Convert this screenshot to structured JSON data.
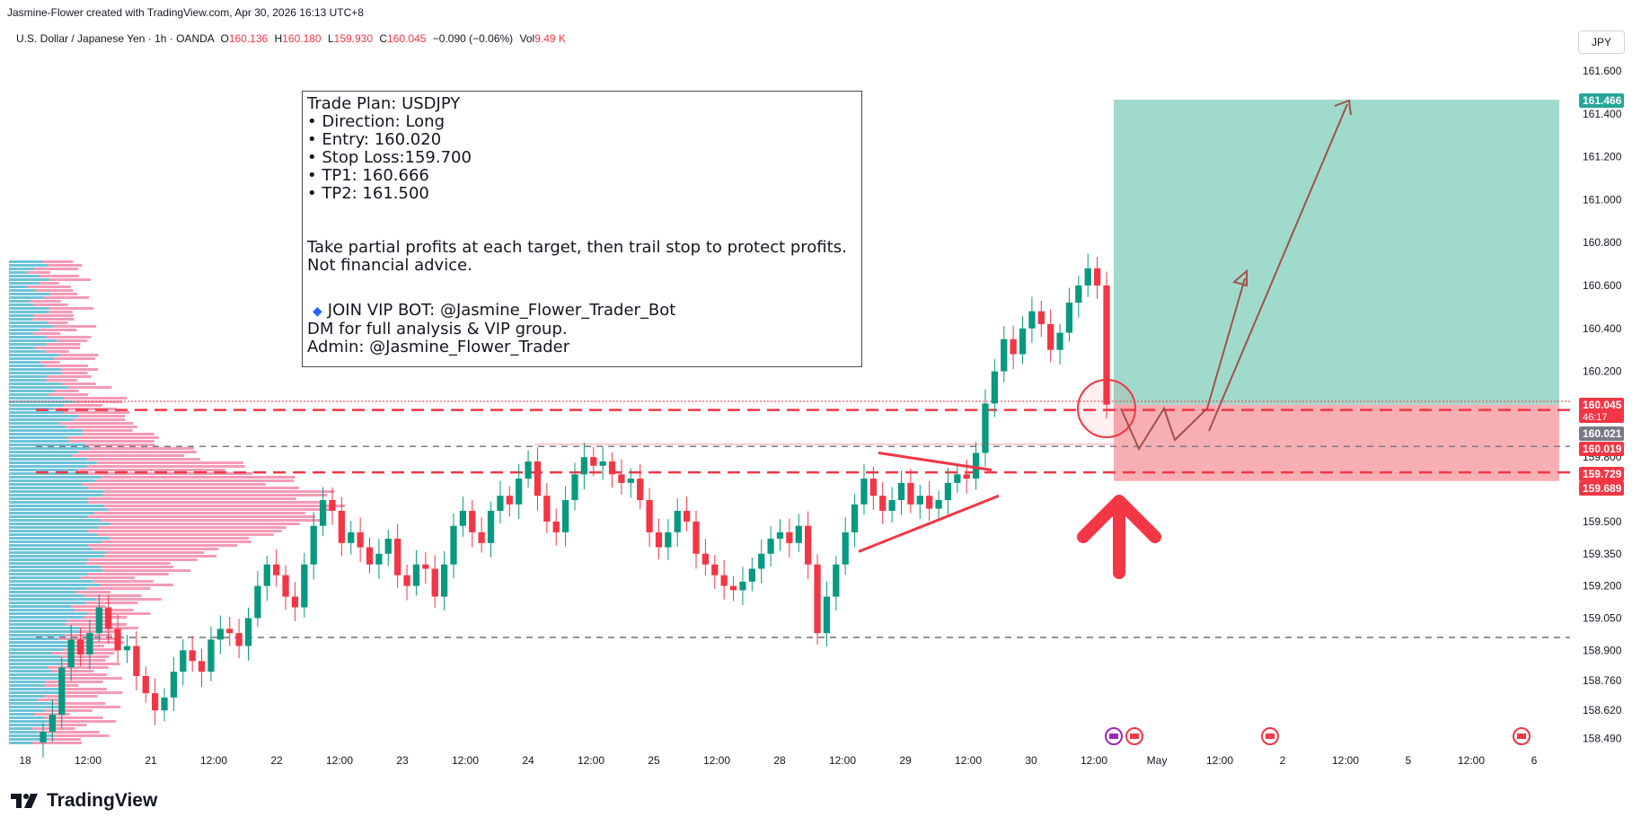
{
  "attribution": "Jasmine-Flower created with TradingView.com, Apr 30, 2026 16:13 UTC+8",
  "header": {
    "symbol": "U.S. Dollar / Japanese Yen · 1h · OANDA",
    "o_label": "O",
    "o": "160.136",
    "h_label": "H",
    "h": "160.180",
    "l_label": "L",
    "l": "159.930",
    "c_label": "C",
    "c": "160.045",
    "change": "−0.090 (−0.06%)",
    "vol_label": "Vol",
    "vol": "9.49 K"
  },
  "currency_button": "JPY",
  "trade_plan": {
    "title": "Trade Plan: USDJPY",
    "direction": "• Direction: Long",
    "entry": "• Entry: 160.020",
    "stop": "• Stop Loss:159.700",
    "tp1": "• TP1: 160.666",
    "tp2": "• TP2: 161.500",
    "note1": "Take partial profits at each target, then trail stop to protect profits.",
    "note2": "Not financial advice.",
    "vip": "JOIN VIP BOT: @Jasmine_Flower_Trader_Bot",
    "dm": "DM for full analysis & VIP group.",
    "admin": "Admin: @Jasmine_Flower_Trader"
  },
  "logo_text": "TradingView",
  "chart_data": {
    "type": "candlestick",
    "y_axis_ticks": [
      "161.600",
      "161.400",
      "161.200",
      "161.000",
      "160.800",
      "160.600",
      "160.400",
      "160.200",
      "159.800",
      "159.500",
      "159.350",
      "159.200",
      "159.050",
      "158.900",
      "158.760",
      "158.620",
      "158.490"
    ],
    "y_tick_values": [
      161.6,
      161.4,
      161.2,
      161.0,
      160.8,
      160.6,
      160.4,
      160.2,
      159.8,
      159.5,
      159.35,
      159.2,
      159.05,
      158.9,
      158.76,
      158.62,
      158.49
    ],
    "x_axis_ticks": [
      "18",
      "12:00",
      "21",
      "12:00",
      "22",
      "12:00",
      "23",
      "12:00",
      "24",
      "12:00",
      "25",
      "12:00",
      "28",
      "12:00",
      "29",
      "12:00",
      "30",
      "12:00",
      "May",
      "12:00",
      "2",
      "12:00",
      "5",
      "12:00",
      "6"
    ],
    "price_labels": [
      {
        "text": "161.466",
        "value": 161.466,
        "color": "#26a69a"
      },
      {
        "text": "160.045",
        "value": 160.045,
        "color": "#f23645",
        "sub": "46:17"
      },
      {
        "text": "160.021",
        "value": 160.021,
        "color": "#787b86"
      },
      {
        "text": "160.019",
        "value": 160.019,
        "color": "#f23645"
      },
      {
        "text": "159.729",
        "value": 159.729,
        "color": "#f23645"
      },
      {
        "text": "159.689",
        "value": 159.689,
        "color": "#f23645"
      }
    ],
    "horizontal_levels": [
      {
        "value": 160.02,
        "style": "dashed",
        "color": "#f23645"
      },
      {
        "value": 159.85,
        "style": "dashed",
        "color": "#787b86"
      },
      {
        "value": 159.729,
        "style": "dashed",
        "color": "#f23645"
      },
      {
        "value": 158.96,
        "style": "dashed",
        "color": "#787b86"
      }
    ],
    "target_zone": {
      "top": 161.466,
      "bottom": 160.045
    },
    "stop_zone": {
      "top": 160.045,
      "bottom": 159.689
    },
    "colors": {
      "up": "#089981",
      "down": "#f23645",
      "target": "#8fd3c3",
      "stop": "#f7a1a7",
      "volume_buy": "#5ec8dd",
      "volume_sell": "#f28aa8"
    },
    "candle_closes": [
      158.52,
      158.6,
      158.82,
      158.95,
      158.88,
      158.98,
      159.1,
      159.0,
      158.9,
      158.92,
      158.78,
      158.7,
      158.62,
      158.68,
      158.8,
      158.9,
      158.85,
      158.8,
      158.95,
      159.0,
      158.98,
      158.92,
      159.05,
      159.2,
      159.3,
      159.25,
      159.15,
      159.1,
      159.3,
      159.48,
      159.6,
      159.55,
      159.4,
      159.45,
      159.38,
      159.3,
      159.35,
      159.42,
      159.25,
      159.2,
      159.3,
      159.28,
      159.15,
      159.3,
      159.48,
      159.55,
      159.45,
      159.4,
      159.55,
      159.62,
      159.58,
      159.7,
      159.78,
      159.62,
      159.5,
      159.45,
      159.6,
      159.72,
      159.8,
      159.76,
      159.78,
      159.72,
      159.68,
      159.7,
      159.6,
      159.45,
      159.38,
      159.45,
      159.55,
      159.5,
      159.35,
      159.3,
      159.25,
      159.2,
      159.18,
      159.22,
      159.28,
      159.35,
      159.42,
      159.45,
      159.4,
      159.48,
      159.3,
      158.98,
      159.15,
      159.3,
      159.45,
      159.58,
      159.7,
      159.62,
      159.55,
      159.6,
      159.68,
      159.58,
      159.62,
      159.56,
      159.6,
      159.68,
      159.72,
      159.7,
      159.82,
      160.05,
      160.2,
      160.35,
      160.28,
      160.4,
      160.48,
      160.42,
      160.3,
      160.38,
      160.52,
      160.6,
      160.68,
      160.6,
      160.045
    ]
  }
}
